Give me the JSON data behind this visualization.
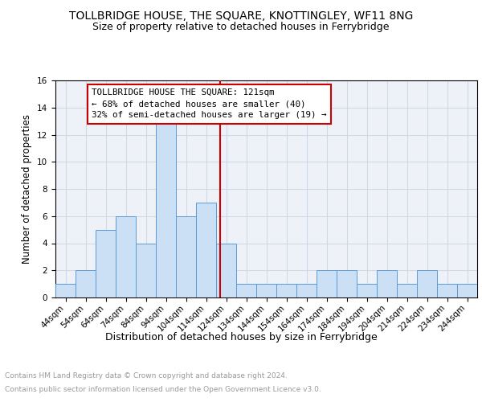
{
  "title": "TOLLBRIDGE HOUSE, THE SQUARE, KNOTTINGLEY, WF11 8NG",
  "subtitle": "Size of property relative to detached houses in Ferrybridge",
  "xlabel": "Distribution of detached houses by size in Ferrybridge",
  "ylabel": "Number of detached properties",
  "bins": [
    "44sqm",
    "54sqm",
    "64sqm",
    "74sqm",
    "84sqm",
    "94sqm",
    "104sqm",
    "114sqm",
    "124sqm",
    "134sqm",
    "144sqm",
    "154sqm",
    "164sqm",
    "174sqm",
    "184sqm",
    "194sqm",
    "204sqm",
    "214sqm",
    "224sqm",
    "234sqm",
    "244sqm"
  ],
  "counts": [
    1,
    2,
    5,
    6,
    4,
    13,
    6,
    7,
    4,
    1,
    1,
    1,
    1,
    2,
    2,
    1,
    2,
    1,
    2,
    1,
    1
  ],
  "bar_color": "#cce0f5",
  "bar_edge_color": "#5b9bd5",
  "vline_x_index": 7.7,
  "vline_color": "#cc0000",
  "annotation_text": "TOLLBRIDGE HOUSE THE SQUARE: 121sqm\n← 68% of detached houses are smaller (40)\n32% of semi-detached houses are larger (19) →",
  "annotation_box_color": "#ffffff",
  "annotation_box_edge": "#cc0000",
  "ylim": [
    0,
    16
  ],
  "yticks": [
    0,
    2,
    4,
    6,
    8,
    10,
    12,
    14,
    16
  ],
  "grid_color": "#d0d8e8",
  "background_color": "#eef2f8",
  "footer_line1": "Contains HM Land Registry data © Crown copyright and database right 2024.",
  "footer_line2": "Contains public sector information licensed under the Open Government Licence v3.0.",
  "title_fontsize": 10,
  "subtitle_fontsize": 9,
  "xlabel_fontsize": 9,
  "ylabel_fontsize": 8.5,
  "tick_fontsize": 7.5,
  "annotation_fontsize": 7.8,
  "footer_fontsize": 6.5
}
